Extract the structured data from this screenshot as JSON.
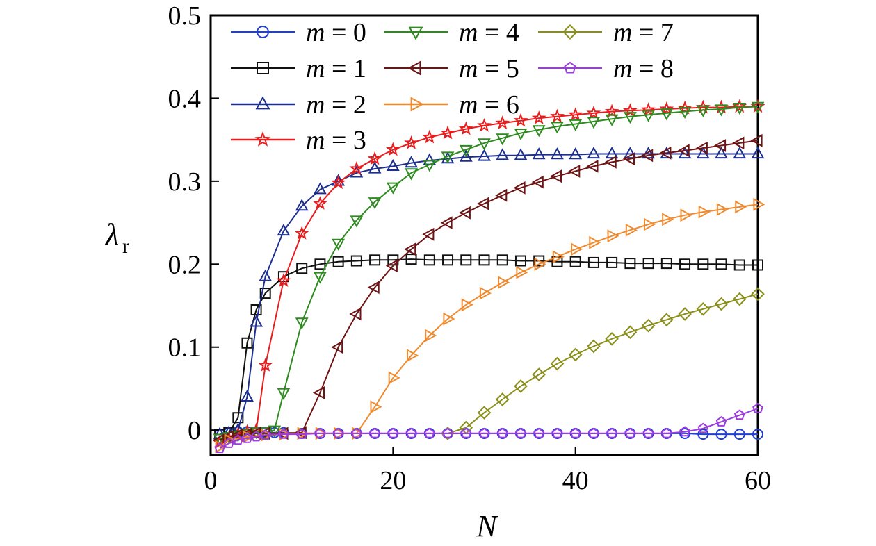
{
  "chart_data": {
    "type": "line",
    "xlabel": "N",
    "ylabel": "λ",
    "ylabel_sub": "r",
    "xlim": [
      0,
      60
    ],
    "ylim": [
      -0.03,
      0.5
    ],
    "xticks": [
      0,
      20,
      40,
      60
    ],
    "yticks": [
      0,
      0.1,
      0.2,
      0.3,
      0.4,
      0.5
    ],
    "xtick_labels": [
      "0",
      "20",
      "40",
      "60"
    ],
    "ytick_labels": [
      "0",
      "0.1",
      "0.2",
      "0.3",
      "0.4",
      "0.5"
    ],
    "grid": false,
    "legend_position": "top-left",
    "series": [
      {
        "name": "m = 0",
        "symbol": "m",
        "number": "0",
        "color": "#1f3fd6",
        "marker": "circle",
        "x": [
          1,
          2,
          3,
          4,
          5,
          6,
          7,
          8,
          10,
          12,
          14,
          16,
          18,
          20,
          22,
          24,
          26,
          28,
          30,
          32,
          34,
          36,
          38,
          40,
          42,
          44,
          46,
          48,
          50,
          52,
          54,
          56,
          58,
          60
        ],
        "y": [
          -0.005,
          -0.003,
          -0.002,
          -0.002,
          -0.002,
          -0.003,
          -0.003,
          -0.003,
          -0.004,
          -0.004,
          -0.004,
          -0.004,
          -0.004,
          -0.004,
          -0.004,
          -0.004,
          -0.004,
          -0.004,
          -0.004,
          -0.004,
          -0.004,
          -0.004,
          -0.004,
          -0.004,
          -0.004,
          -0.004,
          -0.004,
          -0.004,
          -0.004,
          -0.004,
          -0.005,
          -0.005,
          -0.005,
          -0.005
        ]
      },
      {
        "name": "m = 1",
        "symbol": "m",
        "number": "1",
        "color": "#111111",
        "marker": "square",
        "x": [
          1,
          2,
          3,
          4,
          5,
          6,
          8,
          10,
          12,
          14,
          16,
          18,
          20,
          22,
          24,
          26,
          28,
          30,
          32,
          34,
          36,
          38,
          40,
          42,
          44,
          46,
          48,
          50,
          52,
          54,
          56,
          58,
          60
        ],
        "y": [
          -0.005,
          -0.003,
          0.015,
          0.105,
          0.145,
          0.165,
          0.185,
          0.195,
          0.2,
          0.203,
          0.204,
          0.205,
          0.205,
          0.206,
          0.205,
          0.205,
          0.205,
          0.205,
          0.205,
          0.204,
          0.204,
          0.203,
          0.203,
          0.202,
          0.202,
          0.201,
          0.201,
          0.201,
          0.2,
          0.2,
          0.2,
          0.199,
          0.199
        ]
      },
      {
        "name": "m = 2",
        "symbol": "m",
        "number": "2",
        "color": "#1c2f8f",
        "marker": "triangle-up",
        "x": [
          1,
          2,
          3,
          4,
          5,
          6,
          8,
          10,
          12,
          14,
          16,
          18,
          20,
          22,
          24,
          26,
          28,
          30,
          32,
          34,
          36,
          38,
          40,
          42,
          44,
          46,
          48,
          50,
          52,
          54,
          56,
          58,
          60
        ],
        "y": [
          -0.005,
          -0.003,
          0.0,
          0.04,
          0.13,
          0.185,
          0.24,
          0.27,
          0.29,
          0.3,
          0.31,
          0.315,
          0.318,
          0.322,
          0.325,
          0.327,
          0.329,
          0.33,
          0.331,
          0.331,
          0.332,
          0.332,
          0.332,
          0.333,
          0.333,
          0.333,
          0.333,
          0.333,
          0.333,
          0.333,
          0.333,
          0.333,
          0.333
        ]
      },
      {
        "name": "m = 3",
        "symbol": "m",
        "number": "3",
        "color": "#e81c1c",
        "marker": "star",
        "x": [
          1,
          2,
          3,
          4,
          5,
          6,
          8,
          10,
          12,
          14,
          16,
          18,
          20,
          22,
          24,
          26,
          28,
          30,
          32,
          34,
          36,
          38,
          40,
          42,
          44,
          46,
          48,
          50,
          52,
          54,
          56,
          58,
          60
        ],
        "y": [
          -0.015,
          -0.01,
          -0.005,
          -0.002,
          0.0,
          0.078,
          0.18,
          0.237,
          0.273,
          0.298,
          0.315,
          0.327,
          0.338,
          0.346,
          0.353,
          0.358,
          0.363,
          0.367,
          0.37,
          0.373,
          0.376,
          0.378,
          0.38,
          0.382,
          0.384,
          0.385,
          0.386,
          0.387,
          0.388,
          0.389,
          0.389,
          0.39,
          0.39
        ]
      },
      {
        "name": "m = 4",
        "symbol": "m",
        "number": "4",
        "color": "#2e8b1f",
        "marker": "triangle-down",
        "x": [
          1,
          2,
          3,
          4,
          5,
          6,
          7,
          8,
          10,
          12,
          14,
          16,
          18,
          20,
          22,
          24,
          26,
          28,
          30,
          32,
          34,
          36,
          38,
          40,
          42,
          44,
          46,
          48,
          50,
          52,
          54,
          56,
          58,
          60
        ],
        "y": [
          -0.01,
          -0.008,
          -0.006,
          -0.004,
          -0.002,
          -0.002,
          0.0,
          0.045,
          0.13,
          0.185,
          0.225,
          0.253,
          0.275,
          0.293,
          0.31,
          0.32,
          0.33,
          0.338,
          0.346,
          0.352,
          0.358,
          0.362,
          0.366,
          0.369,
          0.372,
          0.375,
          0.378,
          0.38,
          0.382,
          0.384,
          0.386,
          0.387,
          0.389,
          0.39
        ]
      },
      {
        "name": "m = 5",
        "symbol": "m",
        "number": "5",
        "color": "#6e1414",
        "marker": "triangle-left",
        "x": [
          1,
          2,
          3,
          4,
          5,
          6,
          8,
          10,
          12,
          14,
          16,
          18,
          20,
          22,
          24,
          26,
          28,
          30,
          32,
          34,
          36,
          38,
          40,
          42,
          44,
          46,
          48,
          50,
          52,
          54,
          56,
          58,
          60
        ],
        "y": [
          -0.012,
          -0.008,
          -0.006,
          -0.005,
          -0.004,
          -0.004,
          -0.004,
          -0.003,
          0.045,
          0.1,
          0.14,
          0.172,
          0.198,
          0.218,
          0.236,
          0.25,
          0.262,
          0.273,
          0.283,
          0.292,
          0.299,
          0.306,
          0.312,
          0.318,
          0.323,
          0.327,
          0.331,
          0.334,
          0.337,
          0.34,
          0.343,
          0.346,
          0.349
        ]
      },
      {
        "name": "m = 6",
        "symbol": "m",
        "number": "6",
        "color": "#ef8a2f",
        "marker": "triangle-right",
        "x": [
          1,
          2,
          4,
          6,
          8,
          10,
          12,
          14,
          16,
          18,
          20,
          22,
          24,
          26,
          28,
          30,
          32,
          34,
          36,
          38,
          40,
          42,
          44,
          46,
          48,
          50,
          52,
          54,
          56,
          58,
          60
        ],
        "y": [
          -0.02,
          -0.012,
          -0.008,
          -0.006,
          -0.005,
          -0.004,
          -0.004,
          -0.004,
          -0.004,
          0.028,
          0.063,
          0.09,
          0.114,
          0.134,
          0.151,
          0.165,
          0.178,
          0.19,
          0.2,
          0.209,
          0.218,
          0.226,
          0.234,
          0.241,
          0.248,
          0.254,
          0.259,
          0.263,
          0.266,
          0.269,
          0.272
        ]
      },
      {
        "name": "m = 7",
        "symbol": "m",
        "number": "7",
        "color": "#8a8f1a",
        "marker": "diamond",
        "x": [
          26,
          28,
          30,
          32,
          34,
          36,
          38,
          40,
          42,
          44,
          46,
          48,
          50,
          52,
          54,
          56,
          58,
          60
        ],
        "y": [
          -0.004,
          0.003,
          0.021,
          0.037,
          0.053,
          0.067,
          0.08,
          0.091,
          0.101,
          0.11,
          0.118,
          0.126,
          0.133,
          0.14,
          0.146,
          0.152,
          0.158,
          0.164
        ]
      },
      {
        "name": "m = 8",
        "symbol": "m",
        "number": "8",
        "color": "#9b3be0",
        "marker": "pentagon",
        "x": [
          1,
          2,
          3,
          4,
          5,
          6,
          8,
          10,
          12,
          14,
          16,
          18,
          20,
          22,
          24,
          26,
          28,
          30,
          32,
          34,
          36,
          38,
          40,
          42,
          44,
          46,
          48,
          50,
          52,
          54,
          56,
          58,
          60
        ],
        "y": [
          -0.022,
          -0.016,
          -0.012,
          -0.01,
          -0.008,
          -0.006,
          -0.005,
          -0.005,
          -0.004,
          -0.004,
          -0.004,
          -0.004,
          -0.004,
          -0.004,
          -0.004,
          -0.004,
          -0.004,
          -0.004,
          -0.004,
          -0.004,
          -0.004,
          -0.004,
          -0.004,
          -0.004,
          -0.004,
          -0.004,
          -0.004,
          -0.004,
          -0.002,
          0.002,
          0.01,
          0.018,
          0.026
        ]
      }
    ]
  }
}
